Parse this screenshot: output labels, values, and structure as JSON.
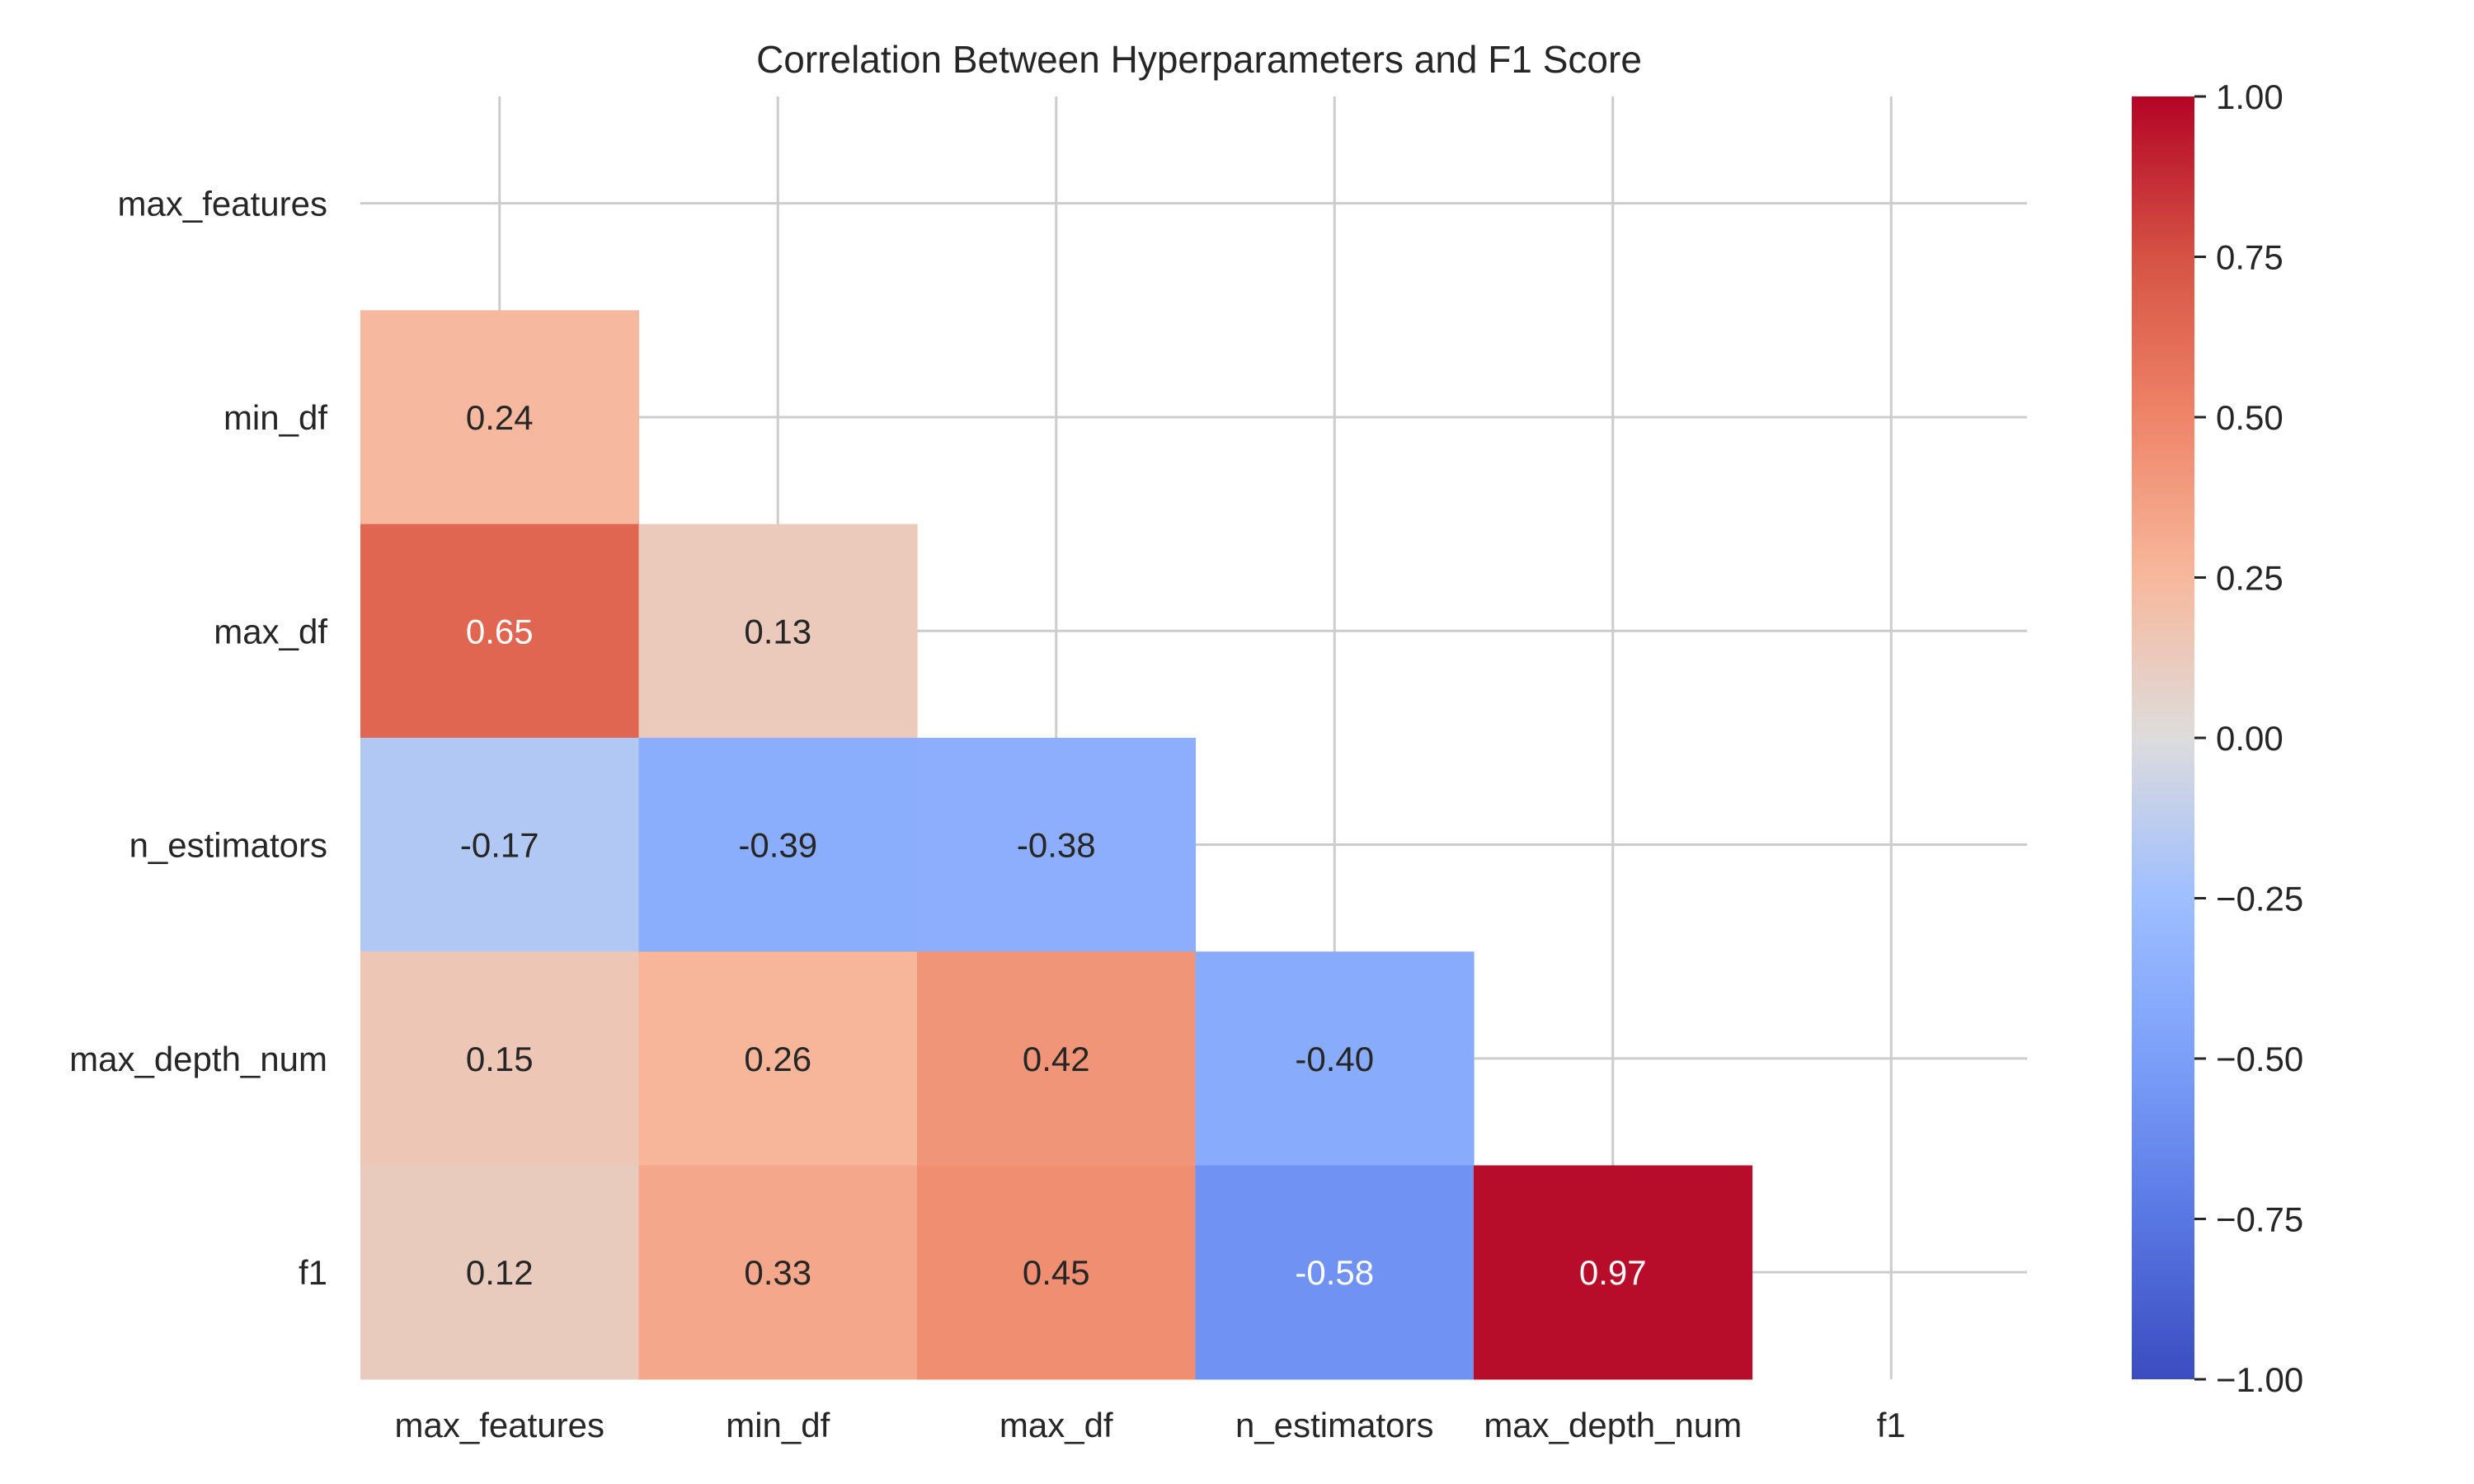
{
  "chart_data": {
    "type": "heatmap",
    "title": "Correlation Between Hyperparameters and F1 Score",
    "xlabel": "",
    "ylabel": "",
    "variables": [
      "max_features",
      "min_df",
      "max_df",
      "n_estimators",
      "max_depth_num",
      "f1"
    ],
    "mask": "upper triangle including diagonal",
    "cells": [
      {
        "row": "min_df",
        "col": "max_features",
        "value": 0.24,
        "label": "0.24"
      },
      {
        "row": "max_df",
        "col": "max_features",
        "value": 0.65,
        "label": "0.65"
      },
      {
        "row": "max_df",
        "col": "min_df",
        "value": 0.13,
        "label": "0.13"
      },
      {
        "row": "n_estimators",
        "col": "max_features",
        "value": -0.17,
        "label": "-0.17"
      },
      {
        "row": "n_estimators",
        "col": "min_df",
        "value": -0.39,
        "label": "-0.39"
      },
      {
        "row": "n_estimators",
        "col": "max_df",
        "value": -0.38,
        "label": "-0.38"
      },
      {
        "row": "max_depth_num",
        "col": "max_features",
        "value": 0.15,
        "label": "0.15"
      },
      {
        "row": "max_depth_num",
        "col": "min_df",
        "value": 0.26,
        "label": "0.26"
      },
      {
        "row": "max_depth_num",
        "col": "max_df",
        "value": 0.42,
        "label": "0.42"
      },
      {
        "row": "max_depth_num",
        "col": "n_estimators",
        "value": -0.4,
        "label": "-0.40"
      },
      {
        "row": "f1",
        "col": "max_features",
        "value": 0.12,
        "label": "0.12"
      },
      {
        "row": "f1",
        "col": "min_df",
        "value": 0.33,
        "label": "0.33"
      },
      {
        "row": "f1",
        "col": "max_df",
        "value": 0.45,
        "label": "0.45"
      },
      {
        "row": "f1",
        "col": "n_estimators",
        "value": -0.58,
        "label": "-0.58"
      },
      {
        "row": "f1",
        "col": "max_depth_num",
        "value": 0.97,
        "label": "0.97"
      }
    ],
    "colorbar": {
      "colormap": "coolwarm",
      "range": [
        -1.0,
        1.0
      ],
      "ticks": [
        1.0,
        0.75,
        0.5,
        0.25,
        0.0,
        -0.25,
        -0.5,
        -0.75,
        -1.0
      ],
      "tick_labels": [
        "1.00",
        "0.75",
        "0.50",
        "0.25",
        "0.00",
        "−0.25",
        "−0.50",
        "−0.75",
        "−1.00"
      ]
    },
    "grid": true,
    "legend": "colorbar right"
  }
}
